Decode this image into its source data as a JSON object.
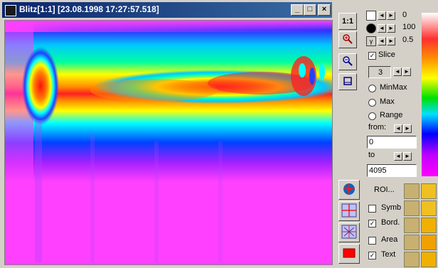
{
  "window": {
    "title": "Blitz[1:1]  [23.08.1998  17:27:57.518]",
    "buttons": {
      "minimize": "_",
      "maximize": "□",
      "close": "×"
    }
  },
  "heatmap": {
    "colors": {
      "background": "#ff40ff",
      "band_core": "#ff1a1a",
      "band_mid": "#ffff00",
      "band_edge": "#00ffff",
      "band_outer": "#0000ff"
    }
  },
  "panel": {
    "zoom_label": "1:1",
    "adjust_values": [
      "0",
      "100",
      "0.5"
    ],
    "slice_label": "Slice",
    "slice_value": "3",
    "minmax_label": "MinMax",
    "max_label": "Max",
    "range_label": "Range",
    "from_label": "from:",
    "from_value": "0",
    "to_label": "to",
    "to_value": "4095",
    "roi_label": "ROI...",
    "symb_label": "Symb",
    "bord_label": "Bord.",
    "area_label": "Area",
    "text_label": "Text",
    "check_mark": "✓"
  },
  "icons": [
    "zoom-in-icon",
    "zoom-out-icon",
    "crop-icon",
    "roi-globe-icon",
    "grid-icon",
    "cross-grid-icon",
    "red-square-icon"
  ]
}
